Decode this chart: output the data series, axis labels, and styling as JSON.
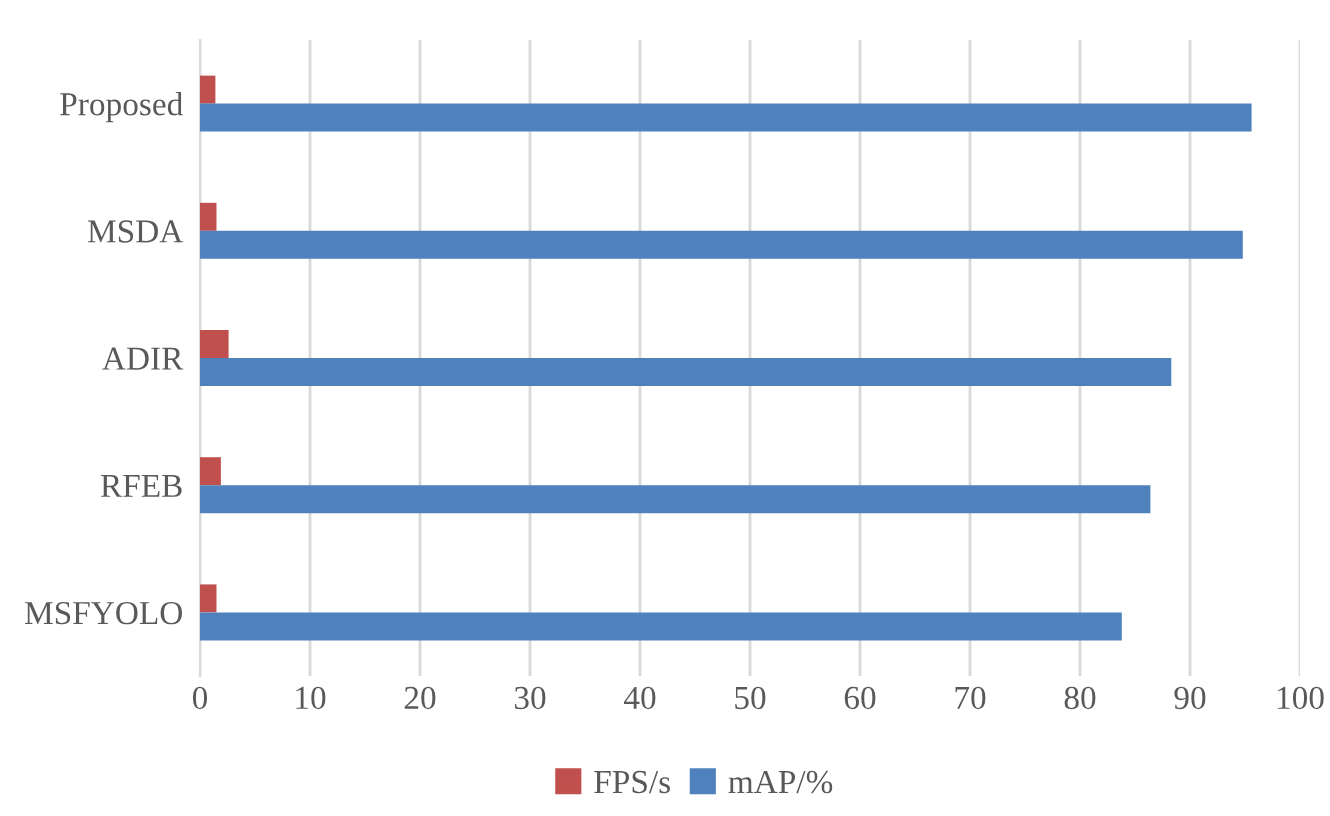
{
  "chart_data": {
    "type": "bar",
    "orientation": "horizontal",
    "categories": [
      "Proposed",
      "MSDA",
      "ADIR",
      "RFEB",
      "MSFYOLO"
    ],
    "series": [
      {
        "name": "FPS/s",
        "color": "#c0504d",
        "values": [
          1.4,
          1.5,
          2.6,
          1.9,
          1.5
        ]
      },
      {
        "name": "mAP/%",
        "color": "#4f81bd",
        "values": [
          95.6,
          94.8,
          88.3,
          86.4,
          83.8
        ]
      }
    ],
    "xlim": [
      0,
      100
    ],
    "xticks": [
      0,
      10,
      20,
      30,
      40,
      50,
      60,
      70,
      80,
      90,
      100
    ],
    "grid": "x",
    "legend": "bottom"
  }
}
